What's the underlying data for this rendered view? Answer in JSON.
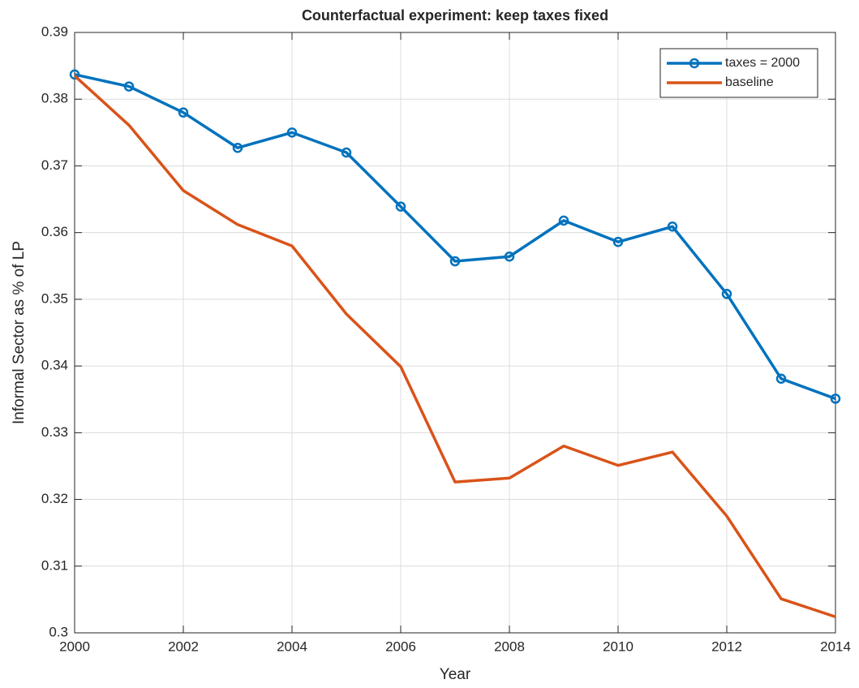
{
  "chart_data": {
    "type": "line",
    "title": "Counterfactual experiment: keep taxes fixed",
    "xlabel": "Year",
    "ylabel": "Informal Sector as % of LP",
    "x": [
      2000,
      2001,
      2002,
      2003,
      2004,
      2005,
      2006,
      2007,
      2008,
      2009,
      2010,
      2011,
      2012,
      2013,
      2014
    ],
    "series": [
      {
        "name": "taxes = 2000",
        "color": "#0072bd",
        "marker": "o",
        "values": [
          0.3837,
          0.3819,
          0.378,
          0.3727,
          0.375,
          0.372,
          0.3639,
          0.3557,
          0.3564,
          0.3618,
          0.3586,
          0.3609,
          0.3508,
          0.3381,
          0.3351
        ]
      },
      {
        "name": "baseline",
        "color": "#d95319",
        "values": [
          0.3835,
          0.3761,
          0.3663,
          0.3612,
          0.358,
          0.3478,
          0.3399,
          0.3226,
          0.3232,
          0.328,
          0.3251,
          0.3271,
          0.3175,
          0.3051,
          0.3024
        ]
      }
    ],
    "xlim": [
      2000,
      2014
    ],
    "xticks": [
      2000,
      2002,
      2004,
      2006,
      2008,
      2010,
      2012,
      2014
    ],
    "ylim": [
      0.3,
      0.39
    ],
    "yticks": [
      0.3,
      0.31,
      0.32,
      0.33,
      0.34,
      0.35,
      0.36,
      0.37,
      0.38,
      0.39
    ],
    "grid": true,
    "legend": "northeast"
  }
}
